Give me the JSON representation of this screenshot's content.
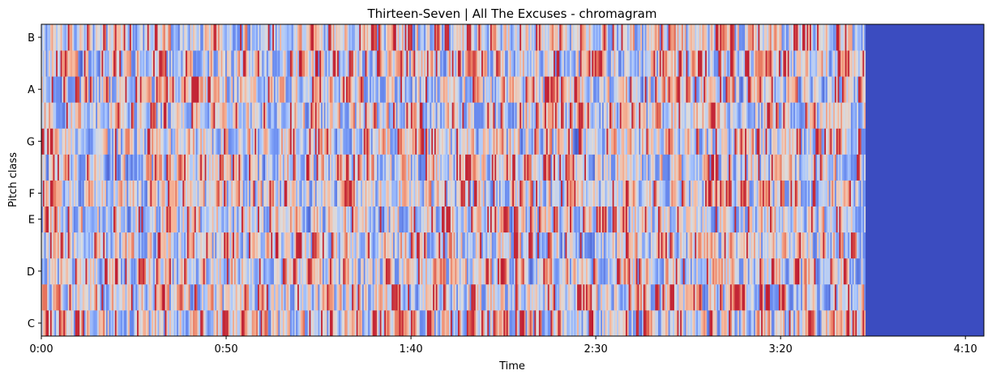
{
  "chart_data": {
    "type": "heatmap",
    "title": "Thirteen-Seven | All The Excuses - chromagram",
    "xlabel": "Time",
    "ylabel": "Pitch class",
    "x_ticks": [
      {
        "seconds": 0,
        "label": "0:00"
      },
      {
        "seconds": 50,
        "label": "0:50"
      },
      {
        "seconds": 100,
        "label": "1:40"
      },
      {
        "seconds": 150,
        "label": "2:30"
      },
      {
        "seconds": 200,
        "label": "3:20"
      },
      {
        "seconds": 250,
        "label": "4:10"
      }
    ],
    "xlim_seconds": [
      0,
      255
    ],
    "audio_end_seconds": 223,
    "pitch_classes": [
      "C",
      "C#",
      "D",
      "D#",
      "E",
      "F",
      "F#",
      "G",
      "G#",
      "A",
      "A#",
      "B"
    ],
    "y_tick_labels": [
      "C",
      "D",
      "E",
      "F",
      "G",
      "A",
      "B"
    ],
    "colormap": "coolwarm",
    "colormap_stops": [
      "#3b4cc0",
      "#6f92f3",
      "#aac7fd",
      "#dddcdc",
      "#f7b89c",
      "#e7745b",
      "#b40426"
    ],
    "fill_after_audio_color": "#3b4cc0",
    "grid": false
  }
}
